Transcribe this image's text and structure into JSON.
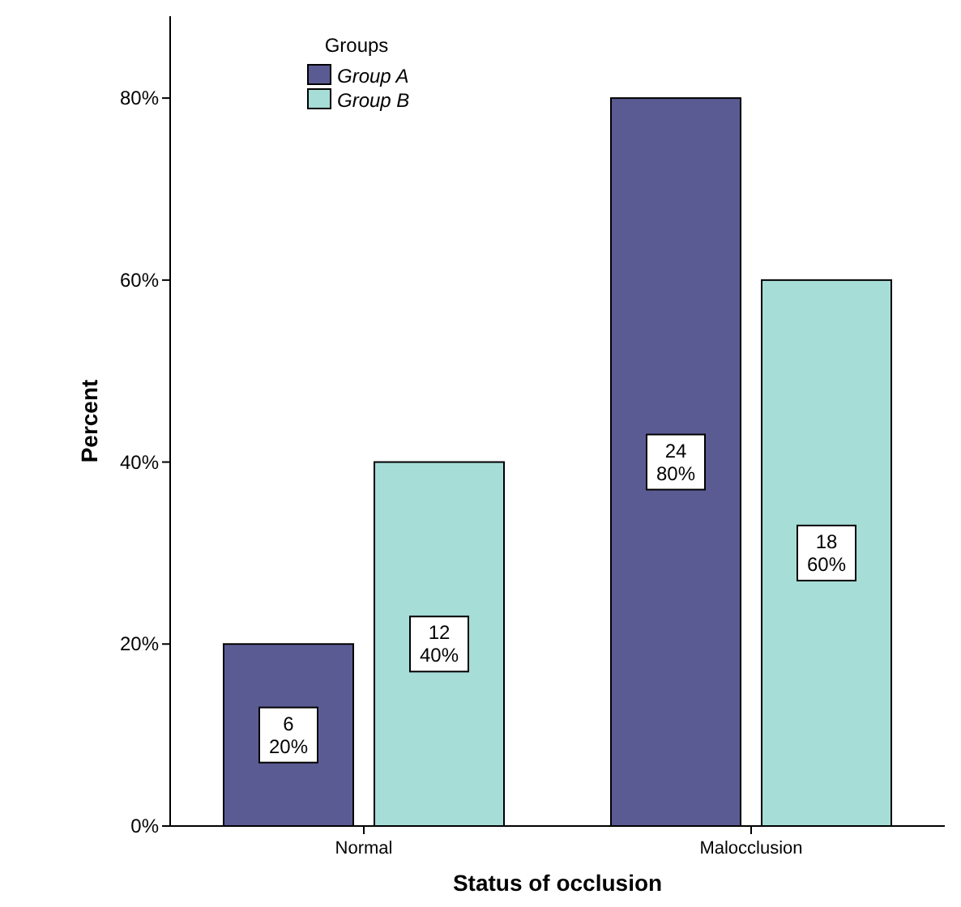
{
  "chart_data": {
    "type": "bar",
    "xlabel": "Status of occlusion",
    "ylabel": "Percent",
    "legend_title": "Groups",
    "legend": "top left",
    "grid": false,
    "categories": [
      "Normal",
      "Malocclusion"
    ],
    "series": [
      {
        "name": "Group A",
        "color": "#5b5b94",
        "values": [
          20,
          80
        ],
        "value_labels": [
          "6\n20%",
          "24\n80%"
        ]
      },
      {
        "name": "Group B",
        "color": "#a6ddd6",
        "values": [
          40,
          60
        ],
        "value_labels": [
          "12\n40%",
          "18\n60%"
        ]
      }
    ],
    "ylim": [
      0,
      89
    ],
    "yticks": [
      {
        "value": 0,
        "label": "0%"
      },
      {
        "value": 20,
        "label": "20%"
      },
      {
        "value": 40,
        "label": "40%"
      },
      {
        "value": 60,
        "label": "60%"
      },
      {
        "value": 80,
        "label": "80%"
      }
    ]
  }
}
